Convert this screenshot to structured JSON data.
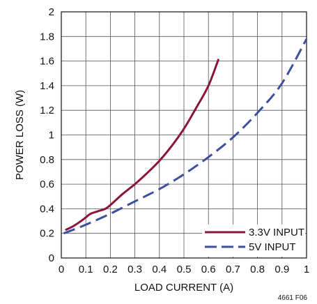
{
  "chart_data": {
    "type": "line",
    "xlabel": "LOAD CURRENT (A)",
    "ylabel": "POWER LOSS (W)",
    "xlim": [
      0,
      1
    ],
    "ylim": [
      0,
      2
    ],
    "x_ticks": [
      "0",
      "0.1",
      "0.2",
      "0.3",
      "0.4",
      "0.5",
      "0.6",
      "0.7",
      "0.8",
      "0.9",
      "1"
    ],
    "y_ticks": [
      "0",
      "0.2",
      "0.4",
      "0.6",
      "0.8",
      "1",
      "1.2",
      "1.4",
      "1.6",
      "1.8",
      "2"
    ],
    "grid": true,
    "legend_position": "bottom-right",
    "figure_id": "4661 F06",
    "series": [
      {
        "name": "3.3V INPUT",
        "color": "#8b1538",
        "style": "solid",
        "x": [
          0.02,
          0.05,
          0.08,
          0.1,
          0.12,
          0.15,
          0.18,
          0.2,
          0.25,
          0.3,
          0.35,
          0.4,
          0.45,
          0.5,
          0.55,
          0.6,
          0.64
        ],
        "y": [
          0.23,
          0.26,
          0.3,
          0.33,
          0.36,
          0.38,
          0.4,
          0.43,
          0.52,
          0.6,
          0.69,
          0.79,
          0.91,
          1.05,
          1.22,
          1.4,
          1.61
        ]
      },
      {
        "name": "5V INPUT",
        "color": "#3d4f9f",
        "style": "dashed",
        "x": [
          0.01,
          0.1,
          0.2,
          0.3,
          0.4,
          0.5,
          0.6,
          0.7,
          0.8,
          0.9,
          1.0
        ],
        "y": [
          0.2,
          0.27,
          0.36,
          0.46,
          0.56,
          0.68,
          0.82,
          0.98,
          1.18,
          1.42,
          1.78
        ]
      }
    ]
  }
}
